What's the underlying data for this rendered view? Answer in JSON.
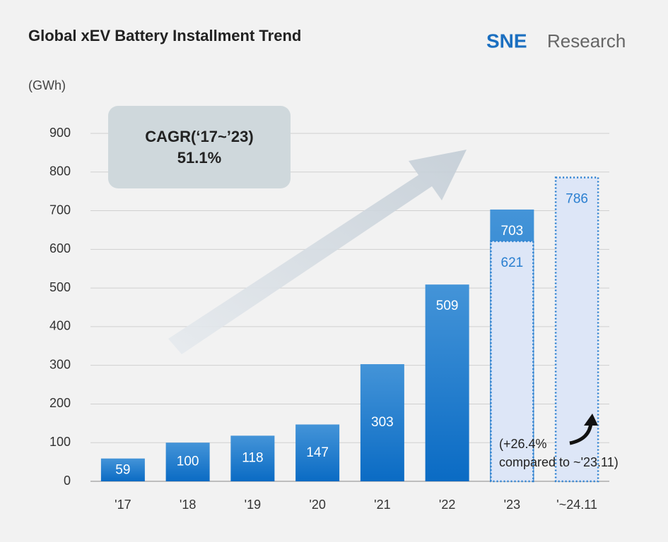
{
  "chart_data": {
    "type": "bar",
    "title": "Global xEV Battery Installment Trend",
    "logo": {
      "brand": "SNE",
      "name": "Research"
    },
    "y_label": "(GWh)",
    "categories": [
      "'17",
      "'18",
      "'19",
      "'20",
      "'21",
      "'22",
      "'23",
      "'~24.11"
    ],
    "values": [
      59,
      100,
      118,
      147,
      303,
      509,
      703,
      null
    ],
    "period_values": [
      null,
      null,
      null,
      null,
      null,
      null,
      621,
      786
    ],
    "color": "#1676cc",
    "period_color": "#2a7fd0",
    "ylim": [
      0,
      900
    ],
    "yticks": [
      0,
      100,
      200,
      300,
      400,
      500,
      600,
      700,
      800,
      900
    ],
    "grid": true,
    "annotations": {
      "cagr_label": "CAGR(‘17~’23)",
      "cagr_value": "51.1%",
      "growth_line1": "(+26.4%",
      "growth_line2": "compared to ~'23.11)"
    }
  }
}
